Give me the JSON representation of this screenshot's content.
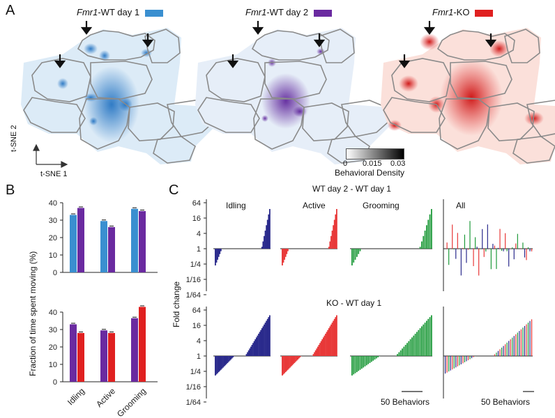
{
  "panels": {
    "A": "A",
    "B": "B",
    "C": "C"
  },
  "maps": [
    {
      "gene": "Fmr1",
      "suffix": "-WT day 1",
      "color": "#3a8fd0"
    },
    {
      "gene": "Fmr1",
      "suffix": "-WT day 2",
      "color": "#6a2aa0"
    },
    {
      "gene": "Fmr1",
      "suffix": "-KO",
      "color": "#e02020"
    }
  ],
  "tsne": {
    "x_label": "t-SNE 1",
    "y_label": "t-SNE 2"
  },
  "density_bar": {
    "ticks": [
      "0",
      "0.015",
      "0.03"
    ],
    "label": "Behavioral Density"
  },
  "chart_data": [
    {
      "type": "bar",
      "panel": "B-top",
      "categories": [
        "Idling",
        "Active",
        "Grooming"
      ],
      "series": [
        {
          "color": "#3a8fd0",
          "values": [
            33,
            29.5,
            36.5
          ]
        },
        {
          "color": "#6a2aa0",
          "values": [
            37,
            26,
            35.2
          ]
        }
      ],
      "ylim": [
        0,
        40
      ],
      "yticks": [
        "0",
        "10",
        "20",
        "30",
        "40"
      ]
    },
    {
      "type": "bar",
      "panel": "B-bottom",
      "categories": [
        "Idling",
        "Active",
        "Grooming"
      ],
      "series": [
        {
          "color": "#6a2aa0",
          "values": [
            33,
            29.5,
            36.5
          ]
        },
        {
          "color": "#e02020",
          "values": [
            28,
            28,
            43
          ]
        }
      ],
      "ylim": [
        0,
        40
      ],
      "yticks": [
        "0",
        "10",
        "20",
        "30",
        "40"
      ]
    },
    {
      "type": "bar",
      "panel": "C",
      "rows": [
        "WT day 2 - WT day 1",
        "KO - WT day 1"
      ],
      "columns": [
        "Idling",
        "Active",
        "Grooming",
        "All"
      ],
      "colors": [
        "#2a2a8c",
        "#e83838",
        "#1e9a3a"
      ],
      "yticks": [
        "64",
        "16",
        "4",
        "1",
        "1/4",
        "1/16",
        "1/64"
      ]
    }
  ],
  "b_axis_label": "Fraction of time spent moving (%)",
  "c_axis_label": "Fold change",
  "c_scale_label": "50 Behaviors"
}
